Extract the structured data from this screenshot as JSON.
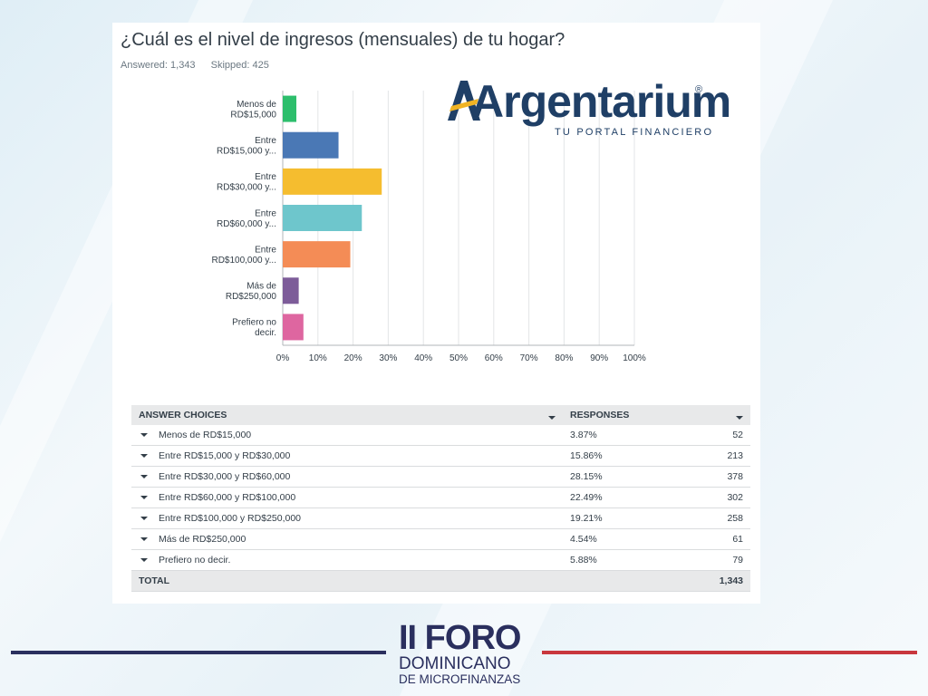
{
  "question": "¿Cuál es el nivel de ingresos (mensuales) de tu hogar?",
  "answered": "Answered: 1,343",
  "skipped": "Skipped: 425",
  "brand": {
    "name": "Argentarium",
    "reg": "®",
    "tagline": "TU PORTAL FINANCIERO",
    "color": "#1f3f66",
    "accent": "#f0b323"
  },
  "chart_data": {
    "type": "bar",
    "orientation": "horizontal",
    "categories": [
      [
        "Menos de",
        "RD$15,000"
      ],
      [
        "Entre",
        "RD$15,000 y..."
      ],
      [
        "Entre",
        "RD$30,000 y..."
      ],
      [
        "Entre",
        "RD$60,000 y..."
      ],
      [
        "Entre",
        "RD$100,000 y..."
      ],
      [
        "Más de",
        "RD$250,000"
      ],
      [
        "Prefiero no",
        "decir."
      ]
    ],
    "values": [
      3.87,
      15.86,
      28.15,
      22.49,
      19.21,
      4.54,
      5.88
    ],
    "colors": [
      "#2dbe6c",
      "#4a78b5",
      "#f5bd2f",
      "#6ec6cc",
      "#f48c56",
      "#7d5c99",
      "#de66a0"
    ],
    "xlim": [
      0,
      100
    ],
    "xticks": [
      "0%",
      "10%",
      "20%",
      "30%",
      "40%",
      "50%",
      "60%",
      "70%",
      "80%",
      "90%",
      "100%"
    ],
    "grid": true
  },
  "table": {
    "headers": [
      "ANSWER CHOICES",
      "RESPONSES"
    ],
    "rows": [
      {
        "choice": "Menos de RD$15,000",
        "pct": "3.87%",
        "count": "52"
      },
      {
        "choice": "Entre RD$15,000 y RD$30,000",
        "pct": "15.86%",
        "count": "213"
      },
      {
        "choice": "Entre RD$30,000 y RD$60,000",
        "pct": "28.15%",
        "count": "378"
      },
      {
        "choice": "Entre RD$60,000 y RD$100,000",
        "pct": "22.49%",
        "count": "302"
      },
      {
        "choice": "Entre RD$100,000 y RD$250,000",
        "pct": "19.21%",
        "count": "258"
      },
      {
        "choice": "Más de RD$250,000",
        "pct": "4.54%",
        "count": "61"
      },
      {
        "choice": "Prefiero no decir.",
        "pct": "5.88%",
        "count": "79"
      }
    ],
    "total_label": "TOTAL",
    "total_count": "1,343"
  },
  "foro": {
    "title": "II FORO",
    "line1": "DOMINICANO",
    "line2": "DE MICROFINANZAS",
    "navy": "#2a2f5e",
    "red": "#c8373d"
  }
}
